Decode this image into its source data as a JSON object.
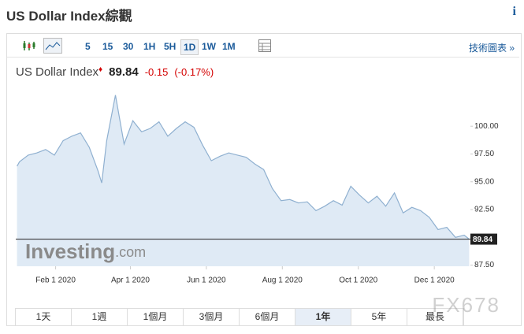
{
  "header": {
    "title": "US Dollar Index綜觀",
    "info": "i"
  },
  "toolbar": {
    "intervals": [
      "5",
      "15",
      "30",
      "1H",
      "5H",
      "1D",
      "1W",
      "1M"
    ],
    "selected": "1D",
    "link": "技術圖表 »"
  },
  "quote": {
    "name": "US Dollar Index",
    "price": "89.84",
    "change": "-0.15",
    "change_pct": "(-0.17%)"
  },
  "logo": {
    "main": "Investing",
    "suffix": ".com"
  },
  "ranges": {
    "items": [
      "1天",
      "1週",
      "1個月",
      "3個月",
      "6個月",
      "1年",
      "5年",
      "最長"
    ],
    "selected": "1年"
  },
  "watermark": "FX678",
  "chart_data": {
    "type": "area",
    "color": "#8fb0d0",
    "fill": "#dfeaf5",
    "grid": false,
    "x": [
      "2020-01-01",
      "2020-01-03",
      "2020-01-10",
      "2020-01-17",
      "2020-01-24",
      "2020-01-31",
      "2020-02-07",
      "2020-02-14",
      "2020-02-21",
      "2020-02-28",
      "2020-03-06",
      "2020-03-09",
      "2020-03-13",
      "2020-03-20",
      "2020-03-27",
      "2020-04-03",
      "2020-04-10",
      "2020-04-17",
      "2020-04-24",
      "2020-05-01",
      "2020-05-08",
      "2020-05-15",
      "2020-05-22",
      "2020-05-29",
      "2020-06-05",
      "2020-06-12",
      "2020-06-19",
      "2020-06-26",
      "2020-07-03",
      "2020-07-10",
      "2020-07-17",
      "2020-07-24",
      "2020-07-31",
      "2020-08-07",
      "2020-08-14",
      "2020-08-21",
      "2020-08-28",
      "2020-09-04",
      "2020-09-11",
      "2020-09-18",
      "2020-09-25",
      "2020-10-02",
      "2020-10-09",
      "2020-10-16",
      "2020-10-23",
      "2020-10-30",
      "2020-11-06",
      "2020-11-13",
      "2020-11-20",
      "2020-11-27",
      "2020-12-04",
      "2020-12-11",
      "2020-12-18",
      "2020-12-25",
      "2020-12-29"
    ],
    "values": [
      96.4,
      96.8,
      97.4,
      97.6,
      97.9,
      97.4,
      98.7,
      99.1,
      99.4,
      98.1,
      96.0,
      94.9,
      98.7,
      102.8,
      98.4,
      100.5,
      99.5,
      99.8,
      100.4,
      99.1,
      99.8,
      100.4,
      99.9,
      98.3,
      96.9,
      97.3,
      97.6,
      97.4,
      97.2,
      96.6,
      96.1,
      94.4,
      93.3,
      93.4,
      93.1,
      93.2,
      92.4,
      92.8,
      93.3,
      92.9,
      94.6,
      93.8,
      93.1,
      93.7,
      92.8,
      94.0,
      92.2,
      92.7,
      92.4,
      91.8,
      90.7,
      90.9,
      90.0,
      90.2,
      89.84
    ],
    "last": 89.84,
    "xlim": [
      "2019-12-31",
      "2020-12-30"
    ],
    "xticks": [
      {
        "value": "2020-02-01",
        "label": "Feb 1 2020"
      },
      {
        "value": "2020-04-01",
        "label": "Apr 1 2020"
      },
      {
        "value": "2020-06-01",
        "label": "Jun 1 2020"
      },
      {
        "value": "2020-08-01",
        "label": "Aug 1 2020"
      },
      {
        "value": "2020-10-01",
        "label": "Oct 1 2020"
      },
      {
        "value": "2020-12-01",
        "label": "Dec 1 2020"
      }
    ],
    "ylim": [
      87.4,
      103.7
    ],
    "yticks": [
      {
        "value": 87.5,
        "label": "87.50"
      },
      {
        "value": 92.5,
        "label": "92.50"
      },
      {
        "value": 95,
        "label": "95.00"
      },
      {
        "value": 97.5,
        "label": "97.50"
      },
      {
        "value": 100,
        "label": "100.00"
      }
    ]
  }
}
